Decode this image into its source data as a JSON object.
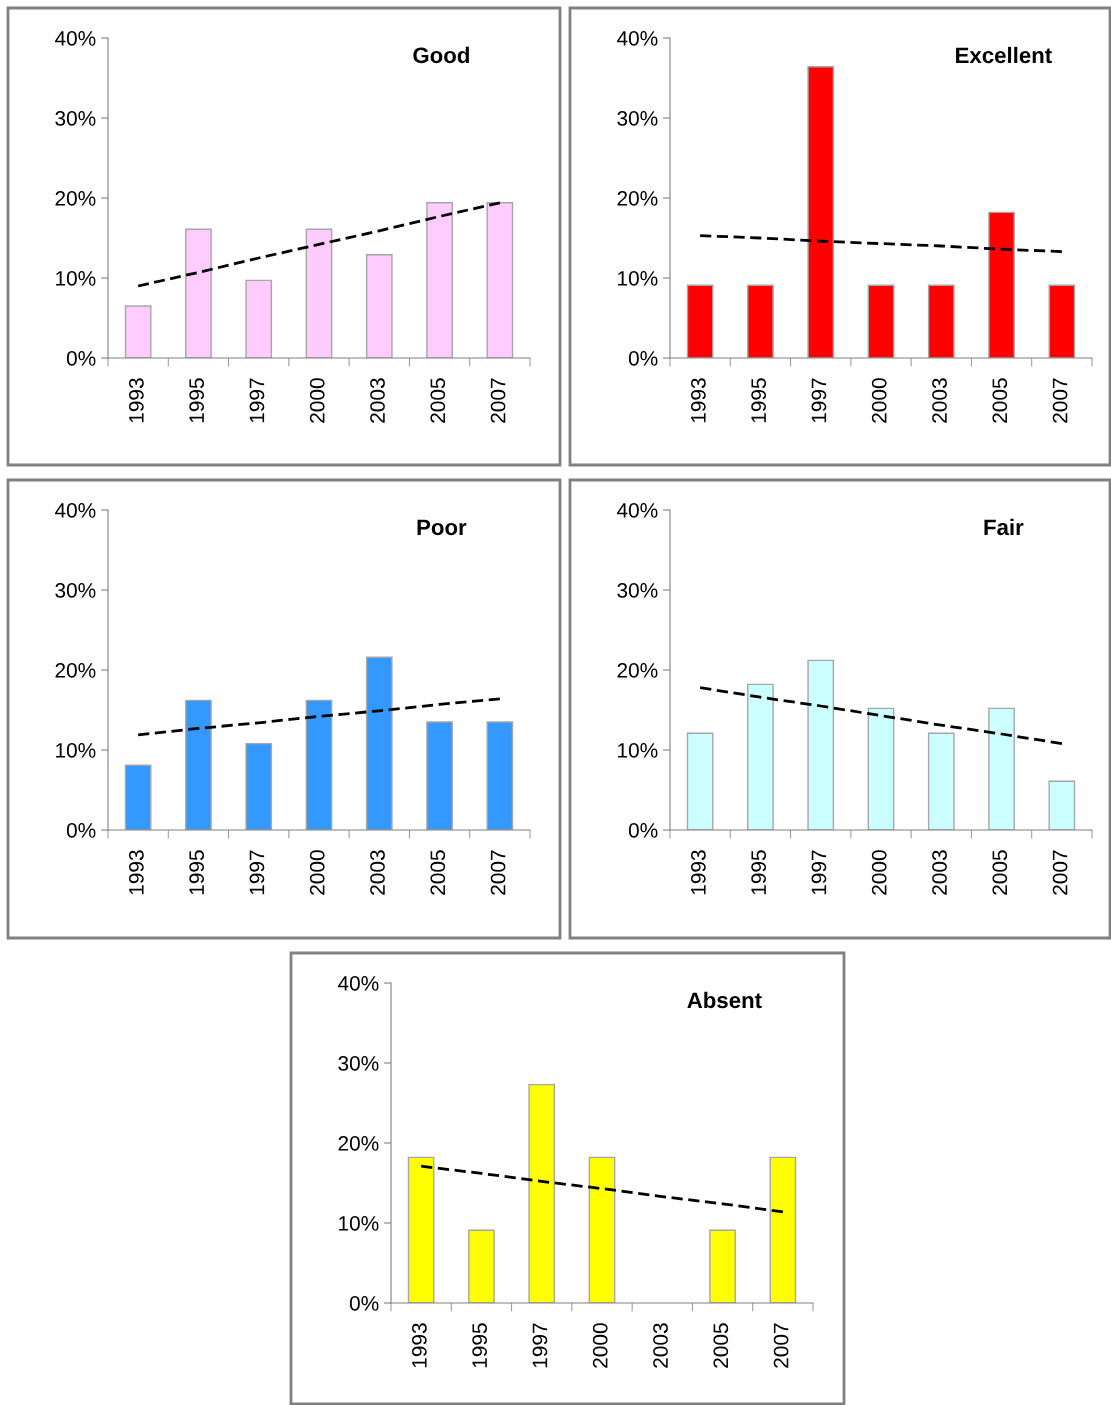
{
  "chart_data": [
    {
      "type": "bar",
      "title": "Good",
      "categories": [
        "1993",
        "1995",
        "1997",
        "2000",
        "2003",
        "2005",
        "2007"
      ],
      "ylim": [
        0,
        40
      ],
      "yticks": [
        {
          "value": 0,
          "label": "0%"
        },
        {
          "value": 10,
          "label": "10%"
        },
        {
          "value": 20,
          "label": "20%"
        },
        {
          "value": 30,
          "label": "30%"
        },
        {
          "value": 40,
          "label": "40%"
        }
      ],
      "grid": false,
      "legend": false,
      "series": [
        {
          "color": "#ffccff",
          "values": [
            6.5,
            16.1,
            9.7,
            16.1,
            12.9,
            19.4,
            19.4
          ]
        },
        {
          "type": "line",
          "color": "#000000",
          "line_style": "dashed",
          "values": [
            9.0,
            10.7,
            12.5,
            14.2,
            15.9,
            17.7,
            19.4
          ]
        }
      ]
    },
    {
      "type": "bar",
      "title": "Excellent",
      "categories": [
        "1993",
        "1995",
        "1997",
        "2000",
        "2003",
        "2005",
        "2007"
      ],
      "ylim": [
        0,
        40
      ],
      "yticks": [
        {
          "value": 0,
          "label": "0%"
        },
        {
          "value": 10,
          "label": "10%"
        },
        {
          "value": 20,
          "label": "20%"
        },
        {
          "value": 30,
          "label": "30%"
        },
        {
          "value": 40,
          "label": "40%"
        }
      ],
      "grid": false,
      "legend": false,
      "series": [
        {
          "color": "#ff0000",
          "values": [
            9.1,
            9.1,
            36.4,
            9.1,
            9.1,
            18.2,
            9.1
          ]
        },
        {
          "type": "line",
          "color": "#000000",
          "line_style": "dashed",
          "values": [
            15.3,
            15.0,
            14.6,
            14.3,
            14.0,
            13.6,
            13.3
          ]
        }
      ]
    },
    {
      "type": "bar",
      "title": "Poor",
      "categories": [
        "1993",
        "1995",
        "1997",
        "2000",
        "2003",
        "2005",
        "2007"
      ],
      "ylim": [
        0,
        40
      ],
      "yticks": [
        {
          "value": 0,
          "label": "0%"
        },
        {
          "value": 10,
          "label": "10%"
        },
        {
          "value": 20,
          "label": "20%"
        },
        {
          "value": 30,
          "label": "30%"
        },
        {
          "value": 40,
          "label": "40%"
        }
      ],
      "grid": false,
      "legend": false,
      "series": [
        {
          "color": "#3399ff",
          "values": [
            8.1,
            16.2,
            10.8,
            16.2,
            21.6,
            13.5,
            13.5
          ]
        },
        {
          "type": "line",
          "color": "#000000",
          "line_style": "dashed",
          "values": [
            11.9,
            12.7,
            13.4,
            14.2,
            14.9,
            15.7,
            16.4
          ]
        }
      ]
    },
    {
      "type": "bar",
      "title": "Fair",
      "categories": [
        "1993",
        "1995",
        "1997",
        "2000",
        "2003",
        "2005",
        "2007"
      ],
      "ylim": [
        0,
        40
      ],
      "yticks": [
        {
          "value": 0,
          "label": "0%"
        },
        {
          "value": 10,
          "label": "10%"
        },
        {
          "value": 20,
          "label": "20%"
        },
        {
          "value": 30,
          "label": "30%"
        },
        {
          "value": 40,
          "label": "40%"
        }
      ],
      "grid": false,
      "legend": false,
      "series": [
        {
          "color": "#ccffff",
          "values": [
            12.1,
            18.2,
            21.2,
            15.2,
            12.1,
            15.2,
            6.1
          ]
        },
        {
          "type": "line",
          "color": "#000000",
          "line_style": "dashed",
          "values": [
            17.8,
            16.6,
            15.5,
            14.3,
            13.1,
            12.0,
            10.8
          ]
        }
      ]
    },
    {
      "type": "bar",
      "title": "Absent",
      "categories": [
        "1993",
        "1995",
        "1997",
        "2000",
        "2003",
        "2005",
        "2007"
      ],
      "ylim": [
        0,
        40
      ],
      "yticks": [
        {
          "value": 0,
          "label": "0%"
        },
        {
          "value": 10,
          "label": "10%"
        },
        {
          "value": 20,
          "label": "20%"
        },
        {
          "value": 30,
          "label": "30%"
        },
        {
          "value": 40,
          "label": "40%"
        }
      ],
      "grid": false,
      "legend": false,
      "series": [
        {
          "color": "#ffff00",
          "values": [
            18.2,
            9.1,
            27.3,
            18.2,
            0,
            9.1,
            18.2
          ]
        },
        {
          "type": "line",
          "color": "#000000",
          "line_style": "dashed",
          "values": [
            17.1,
            16.2,
            15.2,
            14.3,
            13.3,
            12.4,
            11.4
          ]
        }
      ]
    }
  ]
}
